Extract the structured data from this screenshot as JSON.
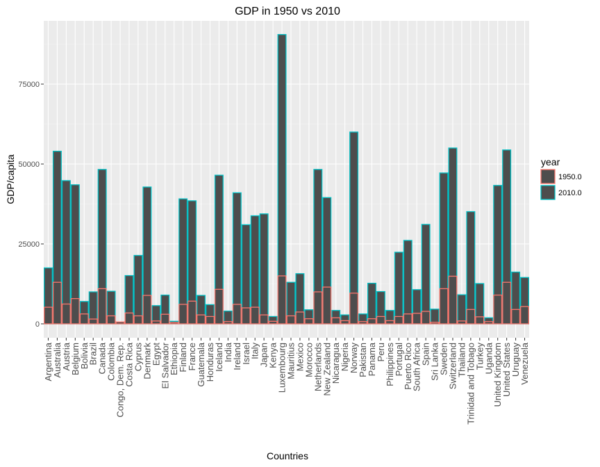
{
  "chart_data": {
    "type": "bar",
    "title": "GDP in 1950 vs 2010",
    "xlabel": "Countries",
    "ylabel": "GDP/capita",
    "ylim": [
      -5000,
      95000
    ],
    "yticks": [
      0,
      25000,
      50000,
      75000
    ],
    "ytick_labels": [
      "0",
      "25000",
      "50000",
      "75000"
    ],
    "grid": true,
    "legend": {
      "title": "year",
      "position": "right"
    },
    "colors": {
      "panel": "#ebebeb",
      "grid_major": "#ffffff",
      "grid_minor": "#f5f5f5",
      "bar_fill": "#4d4d4d",
      "outline_1950": "#f8766d",
      "outline_2010": "#00bfc4"
    },
    "categories": [
      "Argentina",
      "Australia",
      "Austria",
      "Belgium",
      "Bolivia",
      "Brazil",
      "Canada",
      "Colombia",
      "Congo, Dem. Rep.",
      "Costa Rica",
      "Cyprus",
      "Denmark",
      "Egypt",
      "El Salvador",
      "Ethiopia",
      "Finland",
      "France",
      "Guatemala",
      "Honduras",
      "Iceland",
      "India",
      "Ireland",
      "Israel",
      "Italy",
      "Japan",
      "Kenya",
      "Luxembourg",
      "Mauritius",
      "Mexico",
      "Morocco",
      "Netherlands",
      "New Zealand",
      "Nicaragua",
      "Nigeria",
      "Norway",
      "Pakistan",
      "Panama",
      "Peru",
      "Philippines",
      "Portugal",
      "Puerto Rico",
      "South Africa",
      "Spain",
      "Sri Lanka",
      "Sweden",
      "Switzerland",
      "Thailand",
      "Trinidad and Tobago",
      "Turkey",
      "Uganda",
      "United Kingdom",
      "United States",
      "Uruguay",
      "Venezuela"
    ],
    "series": [
      {
        "name": "1950.0",
        "values": [
          5200,
          13000,
          6200,
          7900,
          3100,
          1500,
          11000,
          2500,
          600,
          3400,
          2500,
          8900,
          900,
          3000,
          400,
          6100,
          7100,
          2800,
          2300,
          10800,
          700,
          6100,
          5000,
          5200,
          2800,
          800,
          15000,
          2500,
          3700,
          1600,
          10000,
          11500,
          1900,
          1000,
          9600,
          700,
          1600,
          2300,
          1000,
          2300,
          3100,
          3300,
          3900,
          500,
          11000,
          14900,
          900,
          4500,
          2200,
          700,
          9000,
          13000,
          4500,
          5400
        ]
      },
      {
        "name": "2010.0",
        "values": [
          17500,
          54000,
          44800,
          43500,
          7000,
          10000,
          48300,
          10200,
          500,
          15100,
          21400,
          42800,
          5700,
          9000,
          800,
          39100,
          38500,
          8900,
          6000,
          46500,
          4000,
          41000,
          31000,
          33800,
          34400,
          2300,
          90500,
          13000,
          15700,
          4400,
          48300,
          39500,
          4200,
          2800,
          60000,
          3100,
          12700,
          10100,
          4200,
          22400,
          26100,
          10700,
          31100,
          4600,
          47200,
          55000,
          9100,
          35100,
          12600,
          1900,
          43300,
          54400,
          16200,
          14500
        ]
      }
    ]
  }
}
